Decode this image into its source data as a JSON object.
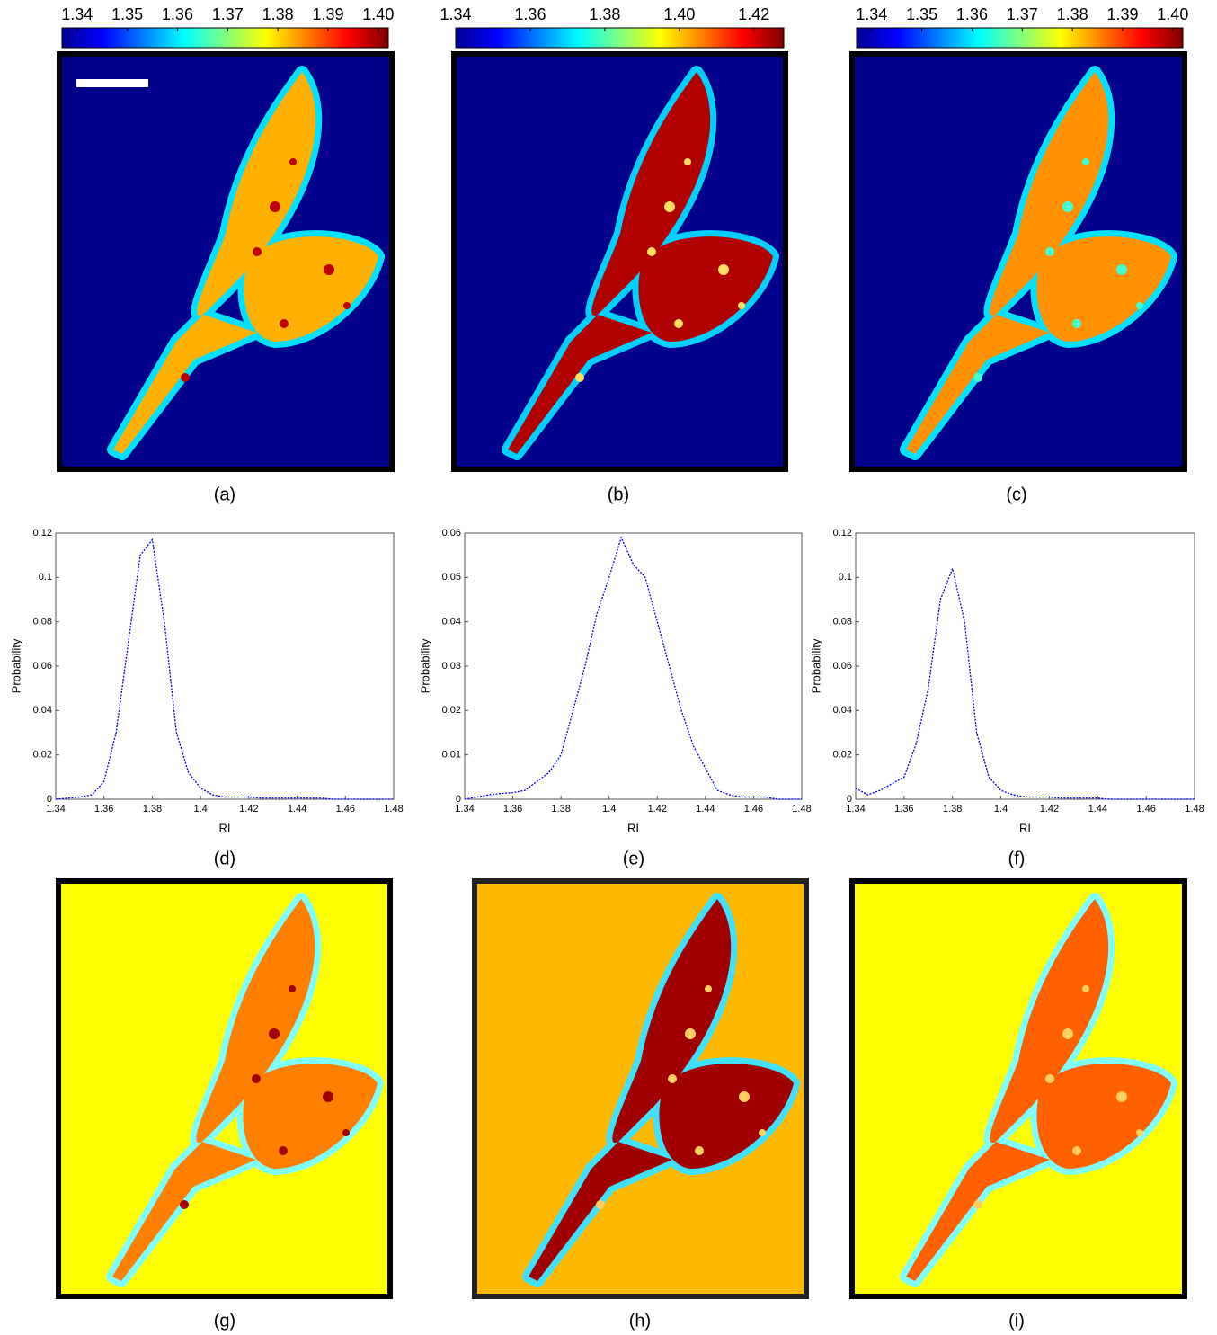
{
  "colorbars": [
    {
      "lim": [
        1.337,
        1.402
      ],
      "ticks": [
        1.34,
        1.35,
        1.36,
        1.37,
        1.38,
        1.39,
        {
          "value": 1.4,
          "label": "1.40"
        }
      ]
    },
    {
      "lim": [
        1.34,
        1.428
      ],
      "ticks": [
        1.34,
        1.36,
        1.38,
        {
          "value": 1.4,
          "label": "1.40"
        },
        1.42
      ]
    },
    {
      "lim": [
        1.337,
        1.402
      ],
      "ticks": [
        1.34,
        1.35,
        1.36,
        1.37,
        1.38,
        1.39,
        {
          "value": 1.4,
          "label": "1.40"
        }
      ]
    }
  ],
  "panel_labels": [
    "(a)",
    "(b)",
    "(c)",
    "(d)",
    "(e)",
    "(f)",
    "(g)",
    "(h)",
    "(i)"
  ],
  "chart_data": [
    {
      "type": "line",
      "xlabel": "RI",
      "ylabel": "Probability",
      "color": "#0000ff",
      "x": [
        1.34,
        1.345,
        1.35,
        1.355,
        1.36,
        1.365,
        1.37,
        1.375,
        1.38,
        1.385,
        1.39,
        1.395,
        1.4,
        1.405,
        1.41,
        1.415,
        1.42,
        1.425,
        1.43,
        1.435,
        1.44,
        1.445,
        1.45,
        1.455,
        1.46,
        1.465,
        1.47,
        1.475,
        1.48
      ],
      "values": [
        0,
        0.0005,
        0.001,
        0.002,
        0.008,
        0.03,
        0.07,
        0.11,
        0.117,
        0.08,
        0.03,
        0.012,
        0.005,
        0.002,
        0.001,
        0.001,
        0.001,
        0.0005,
        0.0005,
        0.0005,
        0.0005,
        0.0005,
        0.0005,
        0,
        0,
        0,
        0,
        0,
        0
      ],
      "xlim": [
        1.34,
        1.48
      ],
      "xticks": [
        1.34,
        1.36,
        1.38,
        1.4,
        1.42,
        1.44,
        1.46,
        1.48
      ],
      "ylim": [
        0,
        0.12
      ],
      "yticks": [
        0,
        0.02,
        0.04,
        0.06,
        0.08,
        0.1,
        0.12
      ]
    },
    {
      "type": "line",
      "xlabel": "RI",
      "ylabel": "Probability",
      "color": "#0000ff",
      "x": [
        1.34,
        1.345,
        1.35,
        1.355,
        1.36,
        1.365,
        1.37,
        1.375,
        1.38,
        1.385,
        1.39,
        1.395,
        1.4,
        1.405,
        1.41,
        1.415,
        1.42,
        1.425,
        1.43,
        1.435,
        1.44,
        1.445,
        1.45,
        1.455,
        1.46,
        1.465,
        1.47,
        1.475,
        1.48
      ],
      "values": [
        0,
        0.0005,
        0.001,
        0.0013,
        0.0015,
        0.002,
        0.004,
        0.006,
        0.01,
        0.02,
        0.03,
        0.042,
        0.05,
        0.059,
        0.053,
        0.05,
        0.04,
        0.03,
        0.02,
        0.012,
        0.007,
        0.002,
        0.001,
        0.0005,
        0.0005,
        0.0005,
        0,
        0,
        0
      ],
      "xlim": [
        1.34,
        1.48
      ],
      "xticks": [
        1.34,
        1.36,
        1.38,
        1.4,
        1.42,
        1.44,
        1.46,
        1.48
      ],
      "ylim": [
        0,
        0.06
      ],
      "yticks": [
        0,
        0.01,
        0.02,
        0.03,
        0.04,
        0.05,
        0.06
      ]
    },
    {
      "type": "line",
      "xlabel": "RI",
      "ylabel": "Probability",
      "color": "#0000ff",
      "x": [
        1.34,
        1.345,
        1.35,
        1.355,
        1.36,
        1.365,
        1.37,
        1.375,
        1.38,
        1.385,
        1.39,
        1.395,
        1.4,
        1.405,
        1.41,
        1.415,
        1.42,
        1.425,
        1.43,
        1.435,
        1.44,
        1.445,
        1.45,
        1.455,
        1.46,
        1.465,
        1.47,
        1.475,
        1.48
      ],
      "values": [
        0.005,
        0.002,
        0.004,
        0.007,
        0.01,
        0.025,
        0.05,
        0.09,
        0.104,
        0.08,
        0.03,
        0.01,
        0.004,
        0.002,
        0.001,
        0.001,
        0.001,
        0.0005,
        0.0005,
        0.0005,
        0.0005,
        0,
        0,
        0,
        0,
        0,
        0,
        0,
        0
      ],
      "xlim": [
        1.34,
        1.48
      ],
      "xticks": [
        1.34,
        1.36,
        1.38,
        1.4,
        1.42,
        1.44,
        1.46,
        1.48
      ],
      "ylim": [
        0,
        0.12
      ],
      "yticks": [
        0,
        0.02,
        0.04,
        0.06,
        0.08,
        0.1,
        0.12
      ]
    }
  ]
}
